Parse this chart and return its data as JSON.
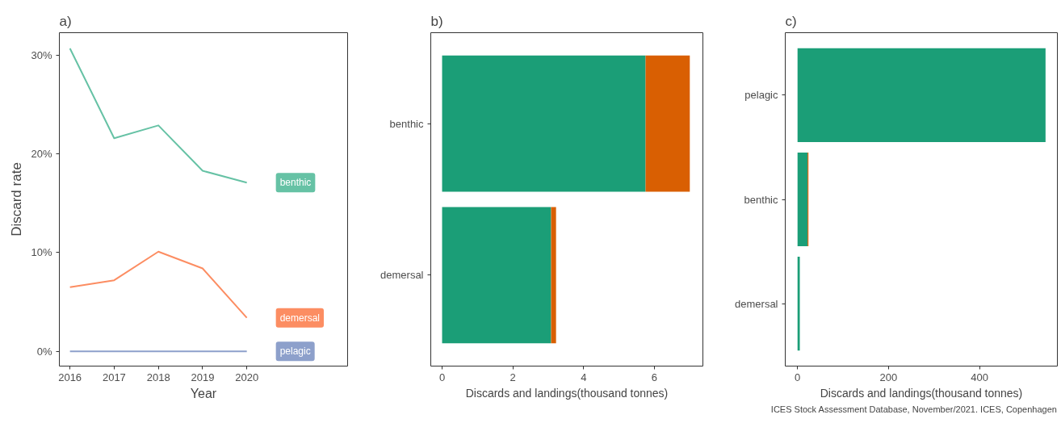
{
  "chart_data": [
    {
      "type": "line",
      "title": "a)",
      "xlabel": "Year",
      "ylabel": "Discard rate",
      "x": [
        2016,
        2017,
        2018,
        2019,
        2020
      ],
      "series": [
        {
          "name": "benthic",
          "color": "#66c2a5",
          "values": [
            30.7,
            21.6,
            22.9,
            18.3,
            17.1
          ]
        },
        {
          "name": "demersal",
          "color": "#fc8d62",
          "values": [
            6.5,
            7.2,
            10.1,
            8.4,
            3.4
          ]
        },
        {
          "name": "pelagic",
          "color": "#8da0cb",
          "values": [
            0,
            0,
            0,
            0,
            0
          ]
        }
      ],
      "xlim": [
        2015.76,
        2022.28
      ],
      "xticks": [
        2016,
        2017,
        2018,
        2019,
        2020
      ],
      "ylim": [
        -1.5,
        32.3
      ],
      "yticks": [
        {
          "value": 0,
          "label": "0%"
        },
        {
          "value": 10,
          "label": "10%"
        },
        {
          "value": 20,
          "label": "20%"
        },
        {
          "value": 30,
          "label": "30%"
        }
      ],
      "grid": false,
      "legend": false,
      "line_style": "solid",
      "marker": "none"
    },
    {
      "type": "bar",
      "orientation": "horizontal",
      "stacked": true,
      "title": "b)",
      "xlabel": "Discards and landings(thousand tonnes)",
      "categories": [
        "benthic",
        "demersal"
      ],
      "series": [
        {
          "color": "#1b9e77",
          "values": [
            5.75,
            3.08
          ]
        },
        {
          "color": "#d95f02",
          "values": [
            1.25,
            0.14
          ]
        }
      ],
      "xlim": [
        -0.32,
        7.37
      ],
      "xticks": [
        0,
        2,
        4,
        6
      ],
      "grid": false
    },
    {
      "type": "bar",
      "orientation": "horizontal",
      "stacked": true,
      "title": "c)",
      "xlabel": "Discards and landings(thousand tonnes)",
      "categories": [
        "pelagic",
        "benthic",
        "demersal"
      ],
      "series": [
        {
          "color": "#1b9e77",
          "values": [
            545,
            22,
            5
          ]
        },
        {
          "color": "#d95f02",
          "values": [
            0,
            2,
            0
          ]
        }
      ],
      "xlim": [
        -27,
        571
      ],
      "xticks": [
        0,
        200,
        400
      ],
      "grid": false,
      "annotations": [
        "ICES Stock Assessment Database, November/2021. ICES, Copenhagen"
      ]
    }
  ]
}
